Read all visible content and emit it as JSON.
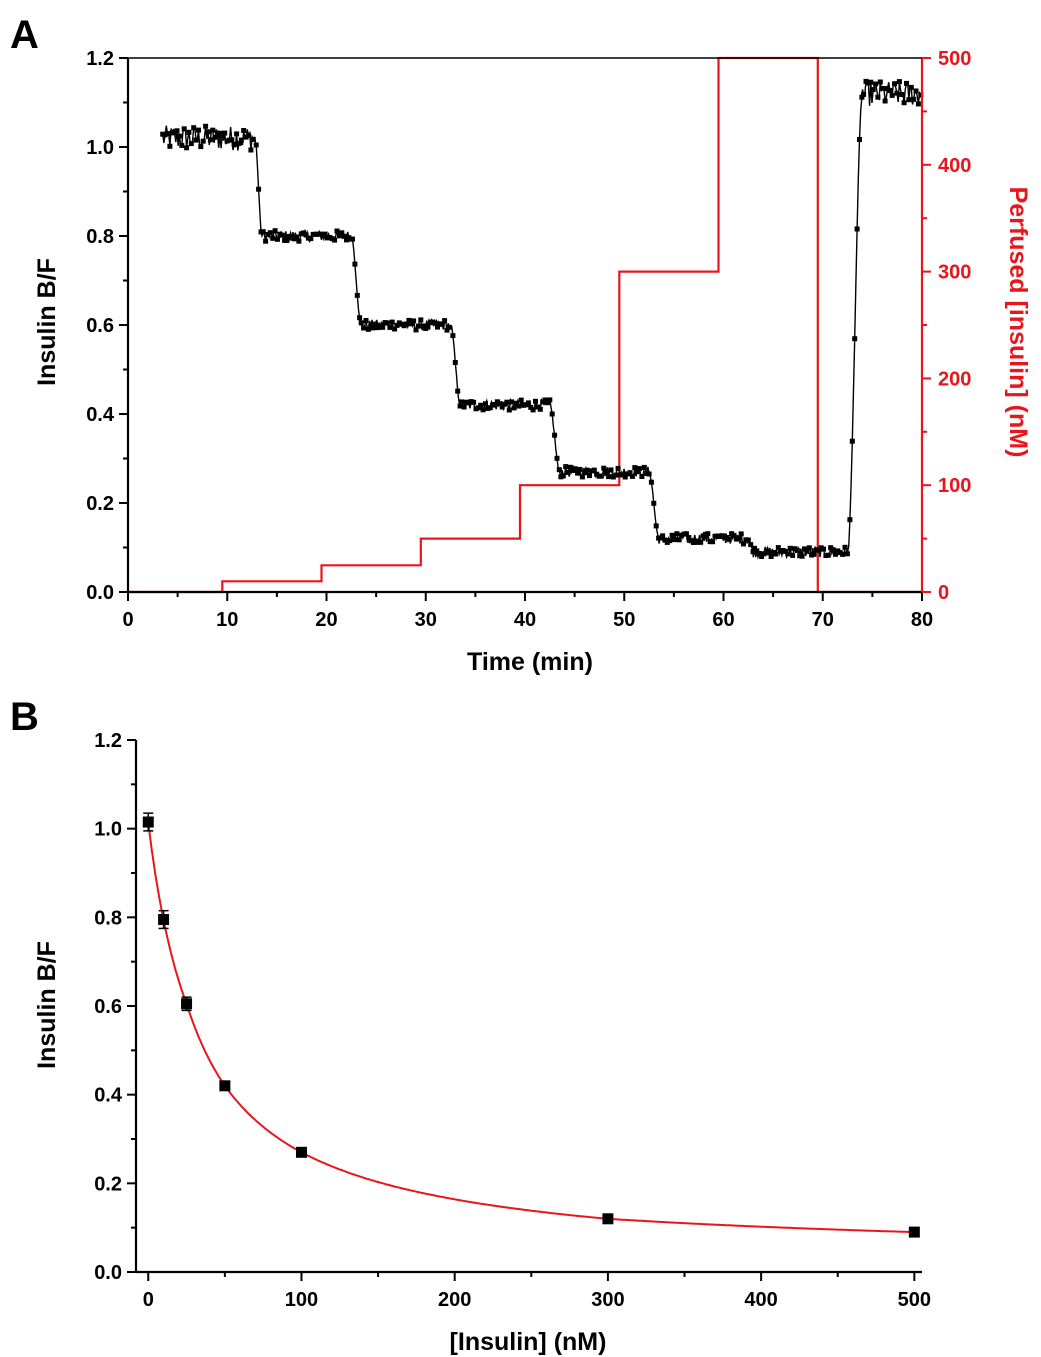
{
  "colors": {
    "data": "#000000",
    "perfusion": "#e8161c",
    "fit": "#e8161c",
    "axis": "#000000"
  },
  "panels": {
    "a_label": "A",
    "b_label": "B"
  },
  "chart_data": [
    {
      "panel": "A",
      "type": "line",
      "xlabel": "Time (min)",
      "ylabel": "Insulin B/F",
      "y2label": "Perfused [insulin] (nM)",
      "xlim": [
        0,
        80
      ],
      "ylim": [
        0,
        1.2
      ],
      "y2lim": [
        0,
        500
      ],
      "xticks": [
        "0",
        "10",
        "20",
        "30",
        "40",
        "50",
        "60",
        "70",
        "80"
      ],
      "yticks": [
        "0.0",
        "0.2",
        "0.4",
        "0.6",
        "0.8",
        "1.0",
        "1.2"
      ],
      "y2ticks": [
        "0",
        "100",
        "200",
        "300",
        "400",
        "500"
      ],
      "series": [
        {
          "axis": "left",
          "marker": "square",
          "plateaus": [
            {
              "x_start": 3.5,
              "x_end": 12.8,
              "y": 1.02
            },
            {
              "x_start": 13.5,
              "x_end": 22.5,
              "y": 0.8
            },
            {
              "x_start": 23.5,
              "x_end": 32.5,
              "y": 0.6
            },
            {
              "x_start": 33.5,
              "x_end": 42.5,
              "y": 0.42
            },
            {
              "x_start": 43.5,
              "x_end": 52.5,
              "y": 0.27
            },
            {
              "x_start": 53.5,
              "x_end": 62.5,
              "y": 0.12
            },
            {
              "x_start": 63.0,
              "x_end": 72.5,
              "y": 0.09
            },
            {
              "x_start": 74.0,
              "x_end": 80.0,
              "y": 1.12
            }
          ]
        },
        {
          "axis": "right",
          "type": "step",
          "x": [
            0,
            9.5,
            9.5,
            19.5,
            19.5,
            29.5,
            29.5,
            39.5,
            39.5,
            49.5,
            49.5,
            59.5,
            59.5,
            69.5,
            69.5,
            80
          ],
          "y": [
            0,
            0,
            10,
            10,
            25,
            25,
            50,
            50,
            100,
            100,
            300,
            300,
            500,
            500,
            0,
            0
          ]
        }
      ]
    },
    {
      "panel": "B",
      "type": "scatter",
      "xlabel": "[Insulin] (nM)",
      "ylabel": "Insulin B/F",
      "xlim": [
        -8,
        505
      ],
      "ylim": [
        0,
        1.2
      ],
      "xticks": [
        "0",
        "100",
        "200",
        "300",
        "400",
        "500"
      ],
      "yticks": [
        "0.0",
        "0.2",
        "0.4",
        "0.6",
        "0.8",
        "1.0",
        "1.2"
      ],
      "points": {
        "x": [
          0,
          10,
          25,
          50,
          100,
          300,
          500
        ],
        "y": [
          1.015,
          0.795,
          0.605,
          0.42,
          0.27,
          0.12,
          0.09
        ],
        "yerr": [
          0.02,
          0.02,
          0.015,
          0.008,
          0.005,
          0.008,
          0.005
        ]
      },
      "fit": {
        "type": "curve",
        "x_min": 0,
        "x_max": 500
      }
    }
  ]
}
